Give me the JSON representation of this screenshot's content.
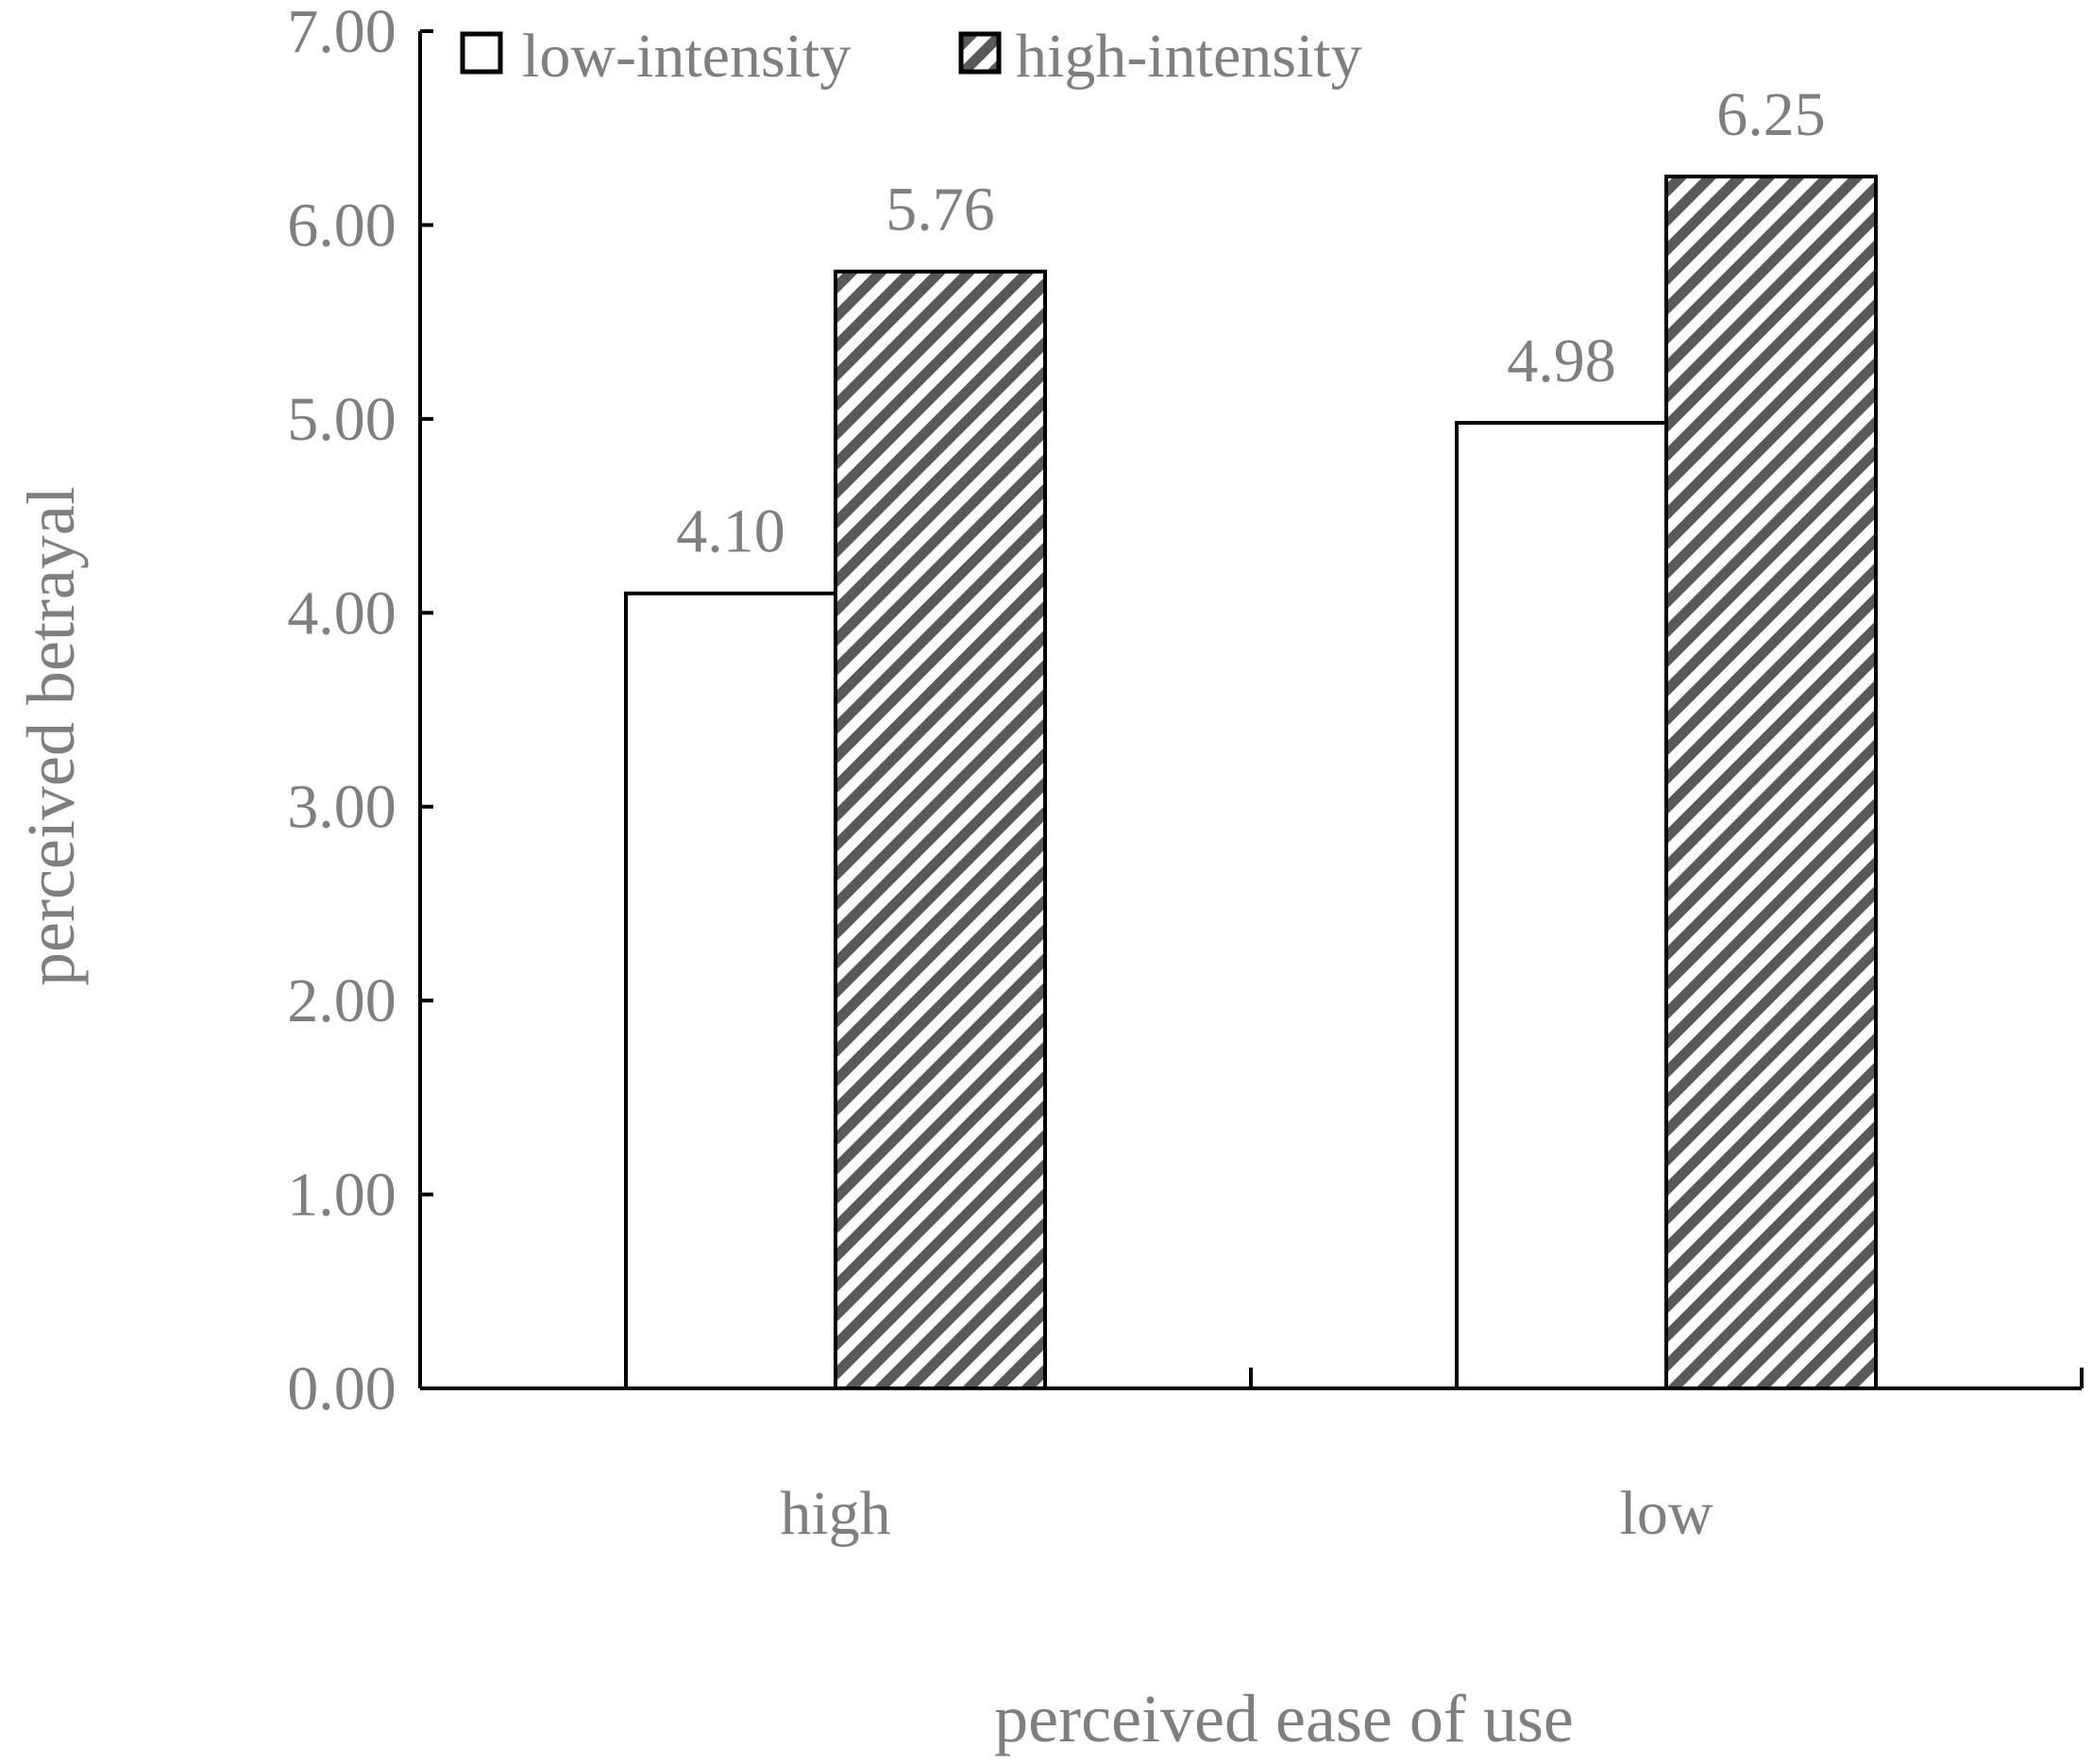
{
  "chart_data": {
    "type": "bar",
    "title": "",
    "xlabel": "perceived ease of use",
    "ylabel": "perceived betrayal",
    "categories": [
      "high",
      "low"
    ],
    "series": [
      {
        "name": "low-intensity",
        "values": [
          4.1,
          4.98
        ],
        "labels": [
          "4.10",
          "4.98"
        ],
        "fill": "solid-white"
      },
      {
        "name": "high-intensity",
        "values": [
          5.76,
          6.25
        ],
        "labels": [
          "5.76",
          "6.25"
        ],
        "fill": "diagonal-hatch"
      }
    ],
    "ylim": [
      0,
      7
    ],
    "yticks": [
      0,
      1,
      2,
      3,
      4,
      5,
      6,
      7
    ],
    "ytick_labels": [
      "0.00",
      "1.00",
      "2.00",
      "3.00",
      "4.00",
      "5.00",
      "6.00",
      "7.00"
    ],
    "grid": false,
    "legend_position": "top-left",
    "colors": {
      "text": "#7f7f7f",
      "axis": "#000000",
      "bar_edge": "#000000",
      "hatch": "#595959"
    }
  }
}
